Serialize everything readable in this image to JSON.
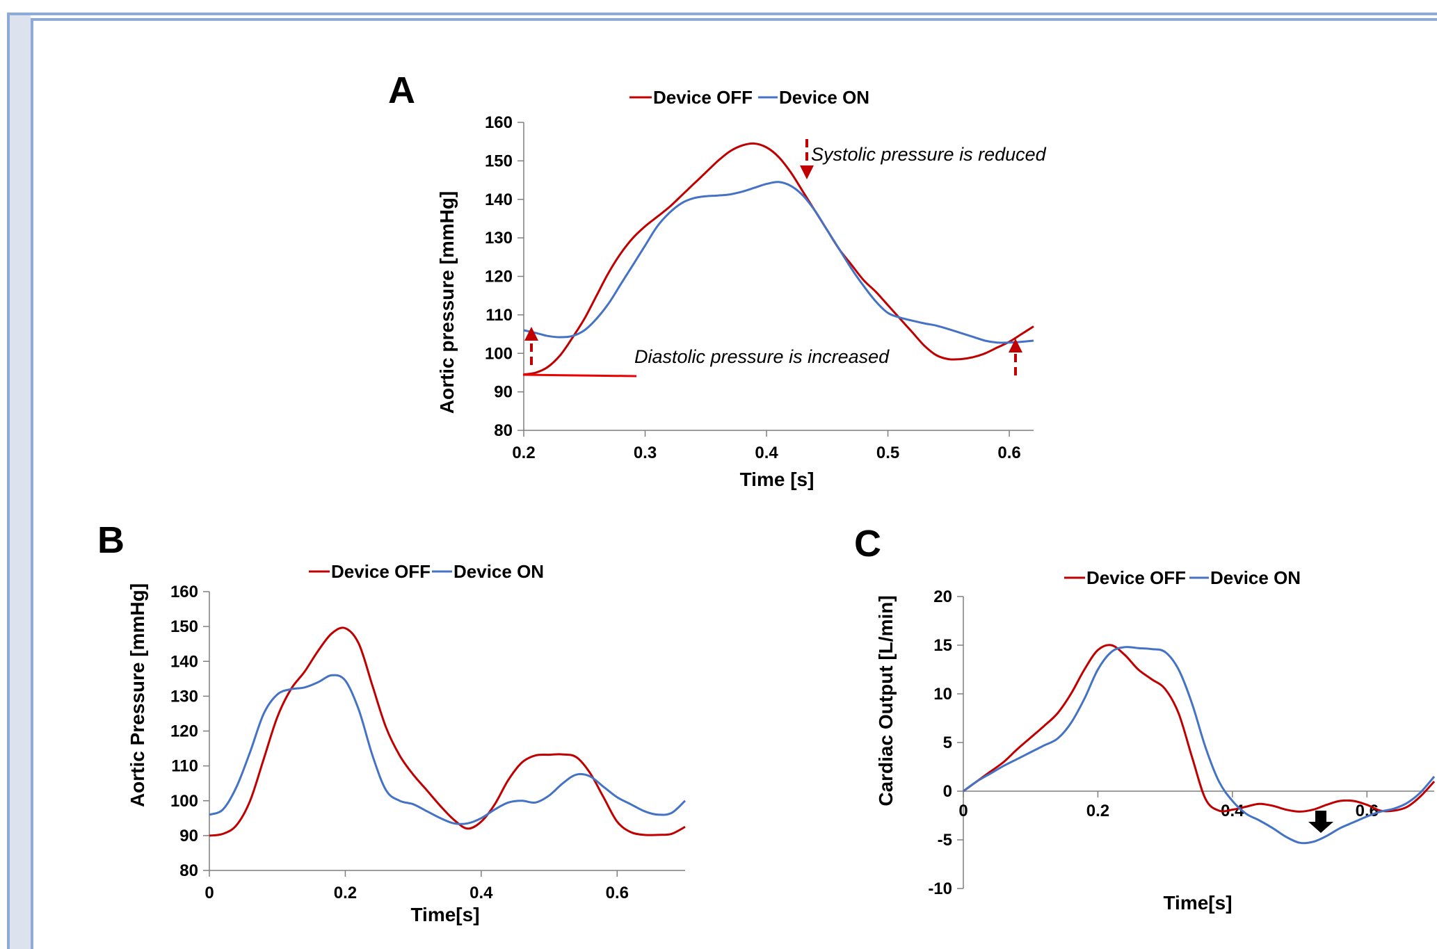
{
  "colors": {
    "off": "#c00000",
    "on": "#4472c4",
    "annot_arrow": "#c00000",
    "frame": "#8eaad6"
  },
  "chart_data": [
    {
      "panel": "A",
      "type": "line",
      "xlabel": "Time [s]",
      "ylabel": "Aortic pressure [mmHg]",
      "xlim": [
        0.2,
        0.62
      ],
      "ylim": [
        80,
        160
      ],
      "xticks": [
        0.2,
        0.3,
        0.4,
        0.5,
        0.6
      ],
      "xtick_labels": [
        "0.2",
        "0.3",
        "0.4",
        "0.5",
        "0.6"
      ],
      "yticks": [
        80,
        90,
        100,
        110,
        120,
        130,
        140,
        150,
        160
      ],
      "ytick_labels": [
        "80",
        "90",
        "100",
        "110",
        "120",
        "130",
        "140",
        "150",
        "160"
      ],
      "legend_position": "top-center",
      "series": [
        {
          "name": "Device OFF",
          "color": "#c00000",
          "x": [
            0.2,
            0.21,
            0.22,
            0.23,
            0.24,
            0.25,
            0.26,
            0.27,
            0.28,
            0.29,
            0.3,
            0.31,
            0.32,
            0.33,
            0.34,
            0.35,
            0.36,
            0.37,
            0.38,
            0.39,
            0.4,
            0.41,
            0.42,
            0.43,
            0.44,
            0.45,
            0.46,
            0.47,
            0.48,
            0.49,
            0.5,
            0.51,
            0.52,
            0.53,
            0.54,
            0.55,
            0.56,
            0.57,
            0.58,
            0.59,
            0.6,
            0.61,
            0.62
          ],
          "y": [
            94.5,
            95,
            96.5,
            99.5,
            104,
            109,
            115,
            121,
            126,
            130,
            133,
            135.5,
            138,
            141,
            144,
            147,
            150,
            152.5,
            154,
            154.5,
            153.5,
            151,
            147,
            142,
            137,
            132,
            127,
            123,
            119,
            116,
            112.5,
            109,
            105.5,
            102,
            99.5,
            98.5,
            98.5,
            99,
            100,
            101.5,
            103,
            105,
            107
          ]
        },
        {
          "name": "Device ON",
          "color": "#4472c4",
          "x": [
            0.2,
            0.21,
            0.22,
            0.23,
            0.24,
            0.25,
            0.26,
            0.27,
            0.28,
            0.29,
            0.3,
            0.31,
            0.32,
            0.33,
            0.34,
            0.35,
            0.36,
            0.37,
            0.38,
            0.39,
            0.4,
            0.41,
            0.42,
            0.43,
            0.44,
            0.45,
            0.46,
            0.47,
            0.48,
            0.49,
            0.5,
            0.51,
            0.52,
            0.53,
            0.54,
            0.55,
            0.56,
            0.57,
            0.58,
            0.59,
            0.6,
            0.61,
            0.62
          ],
          "y": [
            106,
            105.3,
            104.5,
            104.2,
            104.5,
            106,
            109,
            113,
            118,
            123,
            128,
            133,
            136.5,
            139,
            140.3,
            140.8,
            141,
            141.3,
            142,
            143,
            144,
            144.5,
            143.5,
            141,
            137,
            132,
            127,
            122,
            117.5,
            113.5,
            110.5,
            109.3,
            108.5,
            107.8,
            107.2,
            106.3,
            105.3,
            104.3,
            103.3,
            102.8,
            102.8,
            103,
            103.3
          ]
        }
      ],
      "annotations": [
        {
          "text": "Systolic pressure is reduced"
        },
        {
          "text": "Diastolic pressure is increased"
        }
      ]
    },
    {
      "panel": "B",
      "type": "line",
      "xlabel": "Time[s]",
      "ylabel": "Aortic Pressure [mmHg]",
      "xlim": [
        0,
        0.7
      ],
      "ylim": [
        80,
        160
      ],
      "xticks": [
        0,
        0.2,
        0.4,
        0.6
      ],
      "xtick_labels": [
        "0",
        "0.2",
        "0.4",
        "0.6"
      ],
      "yticks": [
        80,
        90,
        100,
        110,
        120,
        130,
        140,
        150,
        160
      ],
      "ytick_labels": [
        "80",
        "90",
        "100",
        "110",
        "120",
        "130",
        "140",
        "150",
        "160"
      ],
      "legend_position": "top-center",
      "series": [
        {
          "name": "Device OFF",
          "color": "#c00000",
          "x": [
            0,
            0.02,
            0.04,
            0.06,
            0.08,
            0.1,
            0.12,
            0.14,
            0.16,
            0.18,
            0.2,
            0.22,
            0.24,
            0.26,
            0.28,
            0.3,
            0.32,
            0.34,
            0.36,
            0.38,
            0.4,
            0.42,
            0.44,
            0.46,
            0.48,
            0.5,
            0.52,
            0.54,
            0.56,
            0.58,
            0.6,
            0.62,
            0.64,
            0.66,
            0.68,
            0.7
          ],
          "y": [
            90,
            90.5,
            93,
            100,
            112,
            124,
            132,
            137,
            143,
            148,
            149.5,
            145,
            133,
            121,
            113,
            107.5,
            103,
            98.5,
            94.5,
            92,
            94,
            99,
            106,
            111,
            113,
            113.2,
            113.3,
            112.5,
            108,
            101,
            94,
            91,
            90.2,
            90.2,
            90.5,
            92.5
          ]
        },
        {
          "name": "Device ON",
          "color": "#4472c4",
          "x": [
            0,
            0.02,
            0.04,
            0.06,
            0.08,
            0.1,
            0.12,
            0.14,
            0.16,
            0.18,
            0.2,
            0.22,
            0.24,
            0.26,
            0.28,
            0.3,
            0.32,
            0.34,
            0.36,
            0.38,
            0.4,
            0.42,
            0.44,
            0.46,
            0.48,
            0.5,
            0.52,
            0.54,
            0.56,
            0.58,
            0.6,
            0.62,
            0.64,
            0.66,
            0.68,
            0.7
          ],
          "y": [
            96,
            97.5,
            104,
            114,
            125,
            130.5,
            132,
            132.5,
            134,
            136,
            134.5,
            126,
            113,
            103,
            100,
            99,
            97,
            95,
            93.5,
            93.5,
            95,
            97.5,
            99.5,
            100,
            99.5,
            101.5,
            105,
            107.5,
            107,
            104,
            101,
            99,
            97,
            96,
            96.5,
            100
          ]
        }
      ]
    },
    {
      "panel": "C",
      "type": "line",
      "xlabel": "Time[s]",
      "ylabel": "Cardiac Output [L/min]",
      "xlim": [
        0,
        0.7
      ],
      "ylim": [
        -10,
        20
      ],
      "xticks": [
        0,
        0.2,
        0.4,
        0.6
      ],
      "xtick_labels": [
        "0",
        "0.2",
        "0.4",
        "0.6"
      ],
      "yticks": [
        -10,
        -5,
        0,
        5,
        10,
        15,
        20
      ],
      "ytick_labels": [
        "-10",
        "-5",
        "0",
        "5",
        "10",
        "15",
        "20"
      ],
      "legend_position": "top-center",
      "series": [
        {
          "name": "Device OFF",
          "color": "#c00000",
          "x": [
            0,
            0.02,
            0.04,
            0.06,
            0.08,
            0.1,
            0.12,
            0.14,
            0.16,
            0.18,
            0.2,
            0.22,
            0.24,
            0.26,
            0.28,
            0.3,
            0.32,
            0.34,
            0.36,
            0.38,
            0.4,
            0.42,
            0.44,
            0.46,
            0.48,
            0.5,
            0.52,
            0.54,
            0.56,
            0.58,
            0.6,
            0.62,
            0.64,
            0.66,
            0.68,
            0.7
          ],
          "y": [
            0,
            1,
            2,
            3,
            4.3,
            5.5,
            6.7,
            8,
            10,
            12.5,
            14.5,
            15,
            14,
            12.5,
            11.5,
            10.5,
            8,
            3.5,
            -0.8,
            -2,
            -1.9,
            -1.6,
            -1.3,
            -1.5,
            -1.9,
            -2.1,
            -1.9,
            -1.4,
            -1,
            -1,
            -1.4,
            -2,
            -2,
            -1.6,
            -0.5,
            1
          ]
        },
        {
          "name": "Device ON",
          "color": "#4472c4",
          "x": [
            0,
            0.02,
            0.04,
            0.06,
            0.08,
            0.1,
            0.12,
            0.14,
            0.16,
            0.18,
            0.2,
            0.22,
            0.24,
            0.26,
            0.28,
            0.3,
            0.32,
            0.34,
            0.36,
            0.38,
            0.4,
            0.42,
            0.44,
            0.46,
            0.48,
            0.5,
            0.52,
            0.54,
            0.56,
            0.58,
            0.6,
            0.62,
            0.64,
            0.66,
            0.68,
            0.7
          ],
          "y": [
            0,
            1,
            1.8,
            2.6,
            3.3,
            4,
            4.7,
            5.4,
            7,
            9.5,
            12.5,
            14.3,
            14.8,
            14.7,
            14.6,
            14.3,
            12.5,
            9,
            4.5,
            1,
            -1,
            -2.3,
            -3,
            -3.8,
            -4.7,
            -5.3,
            -5.2,
            -4.6,
            -3.8,
            -3.2,
            -2.6,
            -2.1,
            -1.8,
            -1.2,
            -0.1,
            1.5
          ]
        }
      ]
    }
  ]
}
